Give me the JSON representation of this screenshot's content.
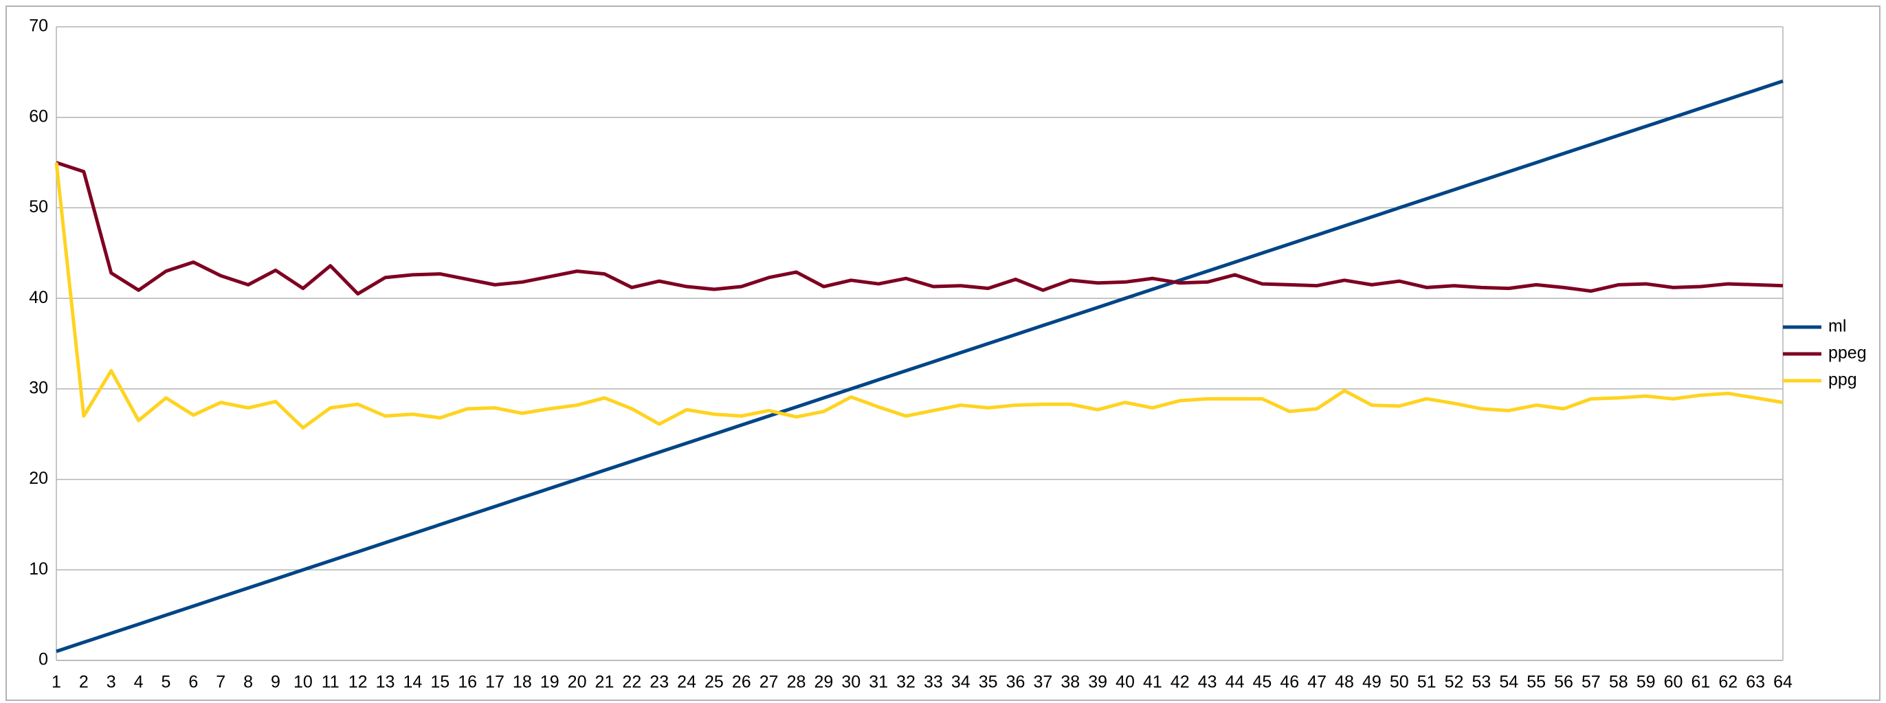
{
  "chart_data": {
    "type": "line",
    "categories": [
      "1",
      "2",
      "3",
      "4",
      "5",
      "6",
      "7",
      "8",
      "9",
      "10",
      "11",
      "12",
      "13",
      "14",
      "15",
      "16",
      "17",
      "18",
      "19",
      "20",
      "21",
      "22",
      "23",
      "24",
      "25",
      "26",
      "27",
      "28",
      "29",
      "30",
      "31",
      "32",
      "33",
      "34",
      "35",
      "36",
      "37",
      "38",
      "39",
      "40",
      "41",
      "42",
      "43",
      "44",
      "45",
      "46",
      "47",
      "48",
      "49",
      "50",
      "51",
      "52",
      "53",
      "54",
      "55",
      "56",
      "57",
      "58",
      "59",
      "60",
      "61",
      "62",
      "63",
      "64"
    ],
    "series": [
      {
        "name": "ml",
        "color": "#004586",
        "values": [
          1,
          2,
          3,
          4,
          5,
          6,
          7,
          8,
          9,
          10,
          11,
          12,
          13,
          14,
          15,
          16,
          17,
          18,
          19,
          20,
          21,
          22,
          23,
          24,
          25,
          26,
          27,
          28,
          29,
          30,
          31,
          32,
          33,
          34,
          35,
          36,
          37,
          38,
          39,
          40,
          41,
          42,
          43,
          44,
          45,
          46,
          47,
          48,
          49,
          50,
          51,
          52,
          53,
          54,
          55,
          56,
          57,
          58,
          59,
          60,
          61,
          62,
          63,
          64
        ]
      },
      {
        "name": "ppeg",
        "color": "#7e0021",
        "values": [
          55,
          54,
          42.8,
          40.9,
          43,
          44,
          42.5,
          41.5,
          43.1,
          41.1,
          43.6,
          40.5,
          42.3,
          42.6,
          42.7,
          42.1,
          41.5,
          41.8,
          42.4,
          43,
          42.7,
          41.2,
          41.9,
          41.3,
          41,
          41.3,
          42.3,
          42.9,
          41.3,
          42,
          41.6,
          42.2,
          41.3,
          41.4,
          41.1,
          42.1,
          40.9,
          42,
          41.7,
          41.8,
          42.2,
          41.7,
          41.8,
          42.6,
          41.6,
          41.5,
          41.4,
          42,
          41.5,
          41.9,
          41.2,
          41.4,
          41.2,
          41.1,
          41.5,
          41.2,
          40.8,
          41.5,
          41.6,
          41.2,
          41.3,
          41.6,
          41.5,
          41.4
        ]
      },
      {
        "name": "ppg",
        "color": "#ffd320",
        "values": [
          55,
          27,
          32,
          26.5,
          29,
          27.1,
          28.5,
          27.9,
          28.6,
          25.7,
          27.9,
          28.3,
          27,
          27.2,
          26.8,
          27.8,
          27.9,
          27.3,
          27.8,
          28.2,
          29,
          27.8,
          26.1,
          27.7,
          27.2,
          27,
          27.6,
          26.9,
          27.5,
          29.1,
          28,
          27,
          27.6,
          28.2,
          27.9,
          28.2,
          28.3,
          28.3,
          27.7,
          28.5,
          27.9,
          28.7,
          28.9,
          28.9,
          28.9,
          27.5,
          27.8,
          29.8,
          28.2,
          28.1,
          28.9,
          28.4,
          27.8,
          27.6,
          28.2,
          27.8,
          28.9,
          29,
          29.2,
          28.9,
          29.3,
          29.5,
          29,
          28.5
        ]
      }
    ],
    "ylim": [
      0,
      70
    ],
    "yticks": [
      0,
      10,
      20,
      30,
      40,
      50,
      60,
      70
    ],
    "grid": true,
    "legend": "right"
  }
}
